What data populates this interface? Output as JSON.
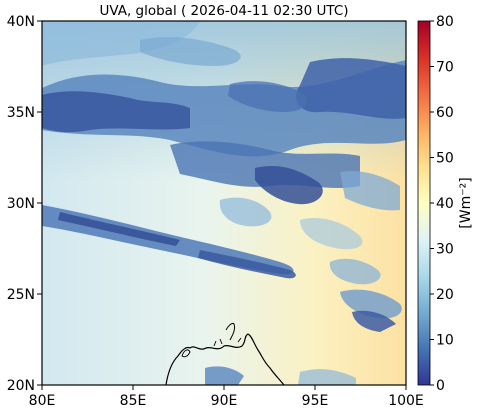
{
  "map": {
    "title": "UVA, global ( 2026-04-11 02:30 UTC)",
    "lon_labels": [
      "80E",
      "85E",
      "90E",
      "95E",
      "100E"
    ],
    "lat_labels": [
      "40N",
      "35N",
      "30N",
      "25N",
      "20N"
    ],
    "extent": {
      "lon": [
        80,
        100
      ],
      "lat": [
        20,
        40
      ]
    }
  },
  "colorbar": {
    "label": "[Wm⁻²]",
    "ticks": [
      "0",
      "10",
      "20",
      "30",
      "40",
      "50",
      "60",
      "70",
      "80"
    ],
    "range": [
      0,
      80
    ],
    "colormap": [
      "#313695",
      "#4575b4",
      "#74add1",
      "#abd9e9",
      "#e0f3f8",
      "#ffffbf",
      "#fee090",
      "#fdae61",
      "#f46d43",
      "#d73027",
      "#a50026"
    ]
  }
}
